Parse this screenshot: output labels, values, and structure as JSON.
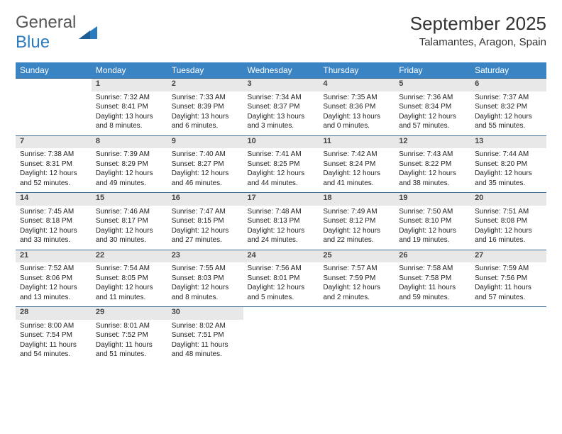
{
  "brand": {
    "name1": "General",
    "name2": "Blue",
    "color1": "#555555",
    "color2": "#2b7bbf",
    "triangle_color": "#2b7bbf"
  },
  "title": "September 2025",
  "location": "Talamantes, Aragon, Spain",
  "header_bg": "#3b84c4",
  "header_fg": "#ffffff",
  "daynum_bg": "#e8e8e8",
  "divider_color": "#3b6a94",
  "weekdays": [
    "Sunday",
    "Monday",
    "Tuesday",
    "Wednesday",
    "Thursday",
    "Friday",
    "Saturday"
  ],
  "weeks": [
    [
      null,
      {
        "n": "1",
        "sr": "Sunrise: 7:32 AM",
        "ss": "Sunset: 8:41 PM",
        "dl": "Daylight: 13 hours and 8 minutes."
      },
      {
        "n": "2",
        "sr": "Sunrise: 7:33 AM",
        "ss": "Sunset: 8:39 PM",
        "dl": "Daylight: 13 hours and 6 minutes."
      },
      {
        "n": "3",
        "sr": "Sunrise: 7:34 AM",
        "ss": "Sunset: 8:37 PM",
        "dl": "Daylight: 13 hours and 3 minutes."
      },
      {
        "n": "4",
        "sr": "Sunrise: 7:35 AM",
        "ss": "Sunset: 8:36 PM",
        "dl": "Daylight: 13 hours and 0 minutes."
      },
      {
        "n": "5",
        "sr": "Sunrise: 7:36 AM",
        "ss": "Sunset: 8:34 PM",
        "dl": "Daylight: 12 hours and 57 minutes."
      },
      {
        "n": "6",
        "sr": "Sunrise: 7:37 AM",
        "ss": "Sunset: 8:32 PM",
        "dl": "Daylight: 12 hours and 55 minutes."
      }
    ],
    [
      {
        "n": "7",
        "sr": "Sunrise: 7:38 AM",
        "ss": "Sunset: 8:31 PM",
        "dl": "Daylight: 12 hours and 52 minutes."
      },
      {
        "n": "8",
        "sr": "Sunrise: 7:39 AM",
        "ss": "Sunset: 8:29 PM",
        "dl": "Daylight: 12 hours and 49 minutes."
      },
      {
        "n": "9",
        "sr": "Sunrise: 7:40 AM",
        "ss": "Sunset: 8:27 PM",
        "dl": "Daylight: 12 hours and 46 minutes."
      },
      {
        "n": "10",
        "sr": "Sunrise: 7:41 AM",
        "ss": "Sunset: 8:25 PM",
        "dl": "Daylight: 12 hours and 44 minutes."
      },
      {
        "n": "11",
        "sr": "Sunrise: 7:42 AM",
        "ss": "Sunset: 8:24 PM",
        "dl": "Daylight: 12 hours and 41 minutes."
      },
      {
        "n": "12",
        "sr": "Sunrise: 7:43 AM",
        "ss": "Sunset: 8:22 PM",
        "dl": "Daylight: 12 hours and 38 minutes."
      },
      {
        "n": "13",
        "sr": "Sunrise: 7:44 AM",
        "ss": "Sunset: 8:20 PM",
        "dl": "Daylight: 12 hours and 35 minutes."
      }
    ],
    [
      {
        "n": "14",
        "sr": "Sunrise: 7:45 AM",
        "ss": "Sunset: 8:18 PM",
        "dl": "Daylight: 12 hours and 33 minutes."
      },
      {
        "n": "15",
        "sr": "Sunrise: 7:46 AM",
        "ss": "Sunset: 8:17 PM",
        "dl": "Daylight: 12 hours and 30 minutes."
      },
      {
        "n": "16",
        "sr": "Sunrise: 7:47 AM",
        "ss": "Sunset: 8:15 PM",
        "dl": "Daylight: 12 hours and 27 minutes."
      },
      {
        "n": "17",
        "sr": "Sunrise: 7:48 AM",
        "ss": "Sunset: 8:13 PM",
        "dl": "Daylight: 12 hours and 24 minutes."
      },
      {
        "n": "18",
        "sr": "Sunrise: 7:49 AM",
        "ss": "Sunset: 8:12 PM",
        "dl": "Daylight: 12 hours and 22 minutes."
      },
      {
        "n": "19",
        "sr": "Sunrise: 7:50 AM",
        "ss": "Sunset: 8:10 PM",
        "dl": "Daylight: 12 hours and 19 minutes."
      },
      {
        "n": "20",
        "sr": "Sunrise: 7:51 AM",
        "ss": "Sunset: 8:08 PM",
        "dl": "Daylight: 12 hours and 16 minutes."
      }
    ],
    [
      {
        "n": "21",
        "sr": "Sunrise: 7:52 AM",
        "ss": "Sunset: 8:06 PM",
        "dl": "Daylight: 12 hours and 13 minutes."
      },
      {
        "n": "22",
        "sr": "Sunrise: 7:54 AM",
        "ss": "Sunset: 8:05 PM",
        "dl": "Daylight: 12 hours and 11 minutes."
      },
      {
        "n": "23",
        "sr": "Sunrise: 7:55 AM",
        "ss": "Sunset: 8:03 PM",
        "dl": "Daylight: 12 hours and 8 minutes."
      },
      {
        "n": "24",
        "sr": "Sunrise: 7:56 AM",
        "ss": "Sunset: 8:01 PM",
        "dl": "Daylight: 12 hours and 5 minutes."
      },
      {
        "n": "25",
        "sr": "Sunrise: 7:57 AM",
        "ss": "Sunset: 7:59 PM",
        "dl": "Daylight: 12 hours and 2 minutes."
      },
      {
        "n": "26",
        "sr": "Sunrise: 7:58 AM",
        "ss": "Sunset: 7:58 PM",
        "dl": "Daylight: 11 hours and 59 minutes."
      },
      {
        "n": "27",
        "sr": "Sunrise: 7:59 AM",
        "ss": "Sunset: 7:56 PM",
        "dl": "Daylight: 11 hours and 57 minutes."
      }
    ],
    [
      {
        "n": "28",
        "sr": "Sunrise: 8:00 AM",
        "ss": "Sunset: 7:54 PM",
        "dl": "Daylight: 11 hours and 54 minutes."
      },
      {
        "n": "29",
        "sr": "Sunrise: 8:01 AM",
        "ss": "Sunset: 7:52 PM",
        "dl": "Daylight: 11 hours and 51 minutes."
      },
      {
        "n": "30",
        "sr": "Sunrise: 8:02 AM",
        "ss": "Sunset: 7:51 PM",
        "dl": "Daylight: 11 hours and 48 minutes."
      },
      null,
      null,
      null,
      null
    ]
  ]
}
